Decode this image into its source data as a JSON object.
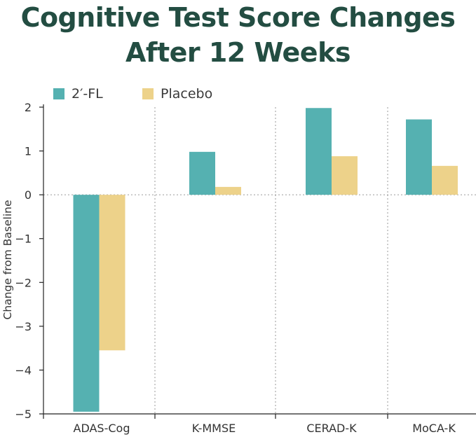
{
  "title": {
    "line1": "Cognitive Test Score Changes",
    "line2": "After 12 Weeks"
  },
  "colors": {
    "title": "#234d42",
    "series_2fl": "#55b1b1",
    "series_placebo": "#edd28a",
    "axis": "#222222",
    "gridline": "#9a9a9a"
  },
  "chart_data": {
    "type": "bar",
    "title": "Cognitive Test Score Changes After 12 Weeks",
    "xlabel": "",
    "ylabel": "Change from Baseline",
    "categories": [
      "ADAS-Cog",
      "K-MMSE",
      "CERAD-K",
      "MoCA-K"
    ],
    "series": [
      {
        "name": "2′-FL",
        "color": "#55b1b1",
        "values": [
          -4.95,
          0.98,
          1.98,
          1.72
        ]
      },
      {
        "name": "Placebo",
        "color": "#edd28a",
        "values": [
          -3.55,
          0.18,
          0.88,
          0.66
        ]
      }
    ],
    "ylim": [
      -5,
      2
    ],
    "yticks": [
      2,
      1,
      0,
      -1,
      -2,
      -3,
      -4,
      -5
    ],
    "ytick_labels": [
      "2",
      "1",
      "0",
      "−1",
      "−2",
      "−3",
      "−4",
      "−5"
    ],
    "legend_position": "top-left",
    "grid": "dotted vertical category separators and dotted zero line"
  }
}
